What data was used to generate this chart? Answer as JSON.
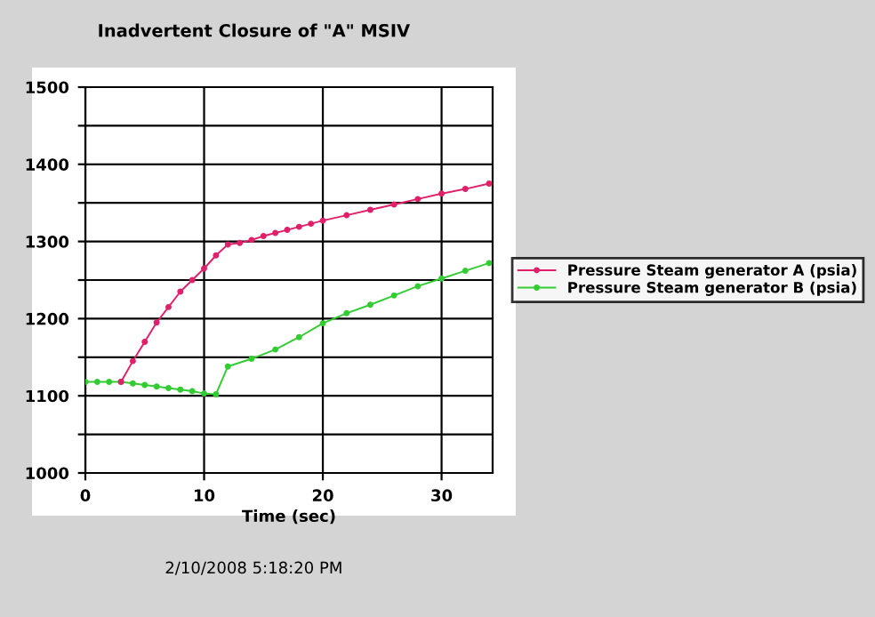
{
  "chart_data": {
    "type": "line",
    "title": "Inadvertent Closure of \"A\" MSIV",
    "xlabel": "Time (sec)",
    "xlim": [
      0,
      34.3
    ],
    "xticks": [
      0,
      10,
      20,
      30
    ],
    "ylim": [
      1000,
      1500
    ],
    "yticks": [
      1000,
      {
        "value": 1050,
        "label": null
      },
      1100,
      {
        "value": 1150,
        "label": null
      },
      1200,
      {
        "value": 1250,
        "label": null
      },
      1300,
      {
        "value": 1350,
        "label": null
      },
      1400,
      {
        "value": 1450,
        "label": null
      },
      1500
    ],
    "grid": true,
    "legend": "right",
    "marker": "circle",
    "line_style": "solid",
    "series": [
      {
        "name": "Pressure Steam generator A (psia)",
        "color": "#e0206a",
        "x": [
          3,
          4,
          5,
          6,
          7,
          8,
          9,
          10,
          11,
          12,
          13,
          14,
          15,
          16,
          17,
          18,
          19,
          20,
          22,
          24,
          26,
          28,
          30,
          32,
          34
        ],
        "values": [
          1118,
          1145,
          1170,
          1195,
          1215,
          1235,
          1250,
          1265,
          1282,
          1296,
          1298,
          1302,
          1307,
          1311,
          1315,
          1319,
          1323,
          1327,
          1334,
          1341,
          1348,
          1355,
          1362,
          1368,
          1375
        ]
      },
      {
        "name": "Pressure Steam generator B (psia)",
        "color": "#33cc33",
        "x": [
          0,
          1,
          2,
          3,
          4,
          5,
          6,
          7,
          8,
          9,
          10,
          11,
          12,
          14,
          16,
          18,
          20,
          22,
          24,
          26,
          28,
          30,
          32,
          34
        ],
        "values": [
          1118,
          1118,
          1118,
          1118,
          1116,
          1114,
          1112,
          1110,
          1108,
          1106,
          1103,
          1102,
          1138,
          1148,
          1160,
          1176,
          1194,
          1207,
          1218,
          1230,
          1242,
          1252,
          1262,
          1272
        ]
      }
    ],
    "annotations": [
      "2/10/2008 5:18:20 PM"
    ]
  }
}
